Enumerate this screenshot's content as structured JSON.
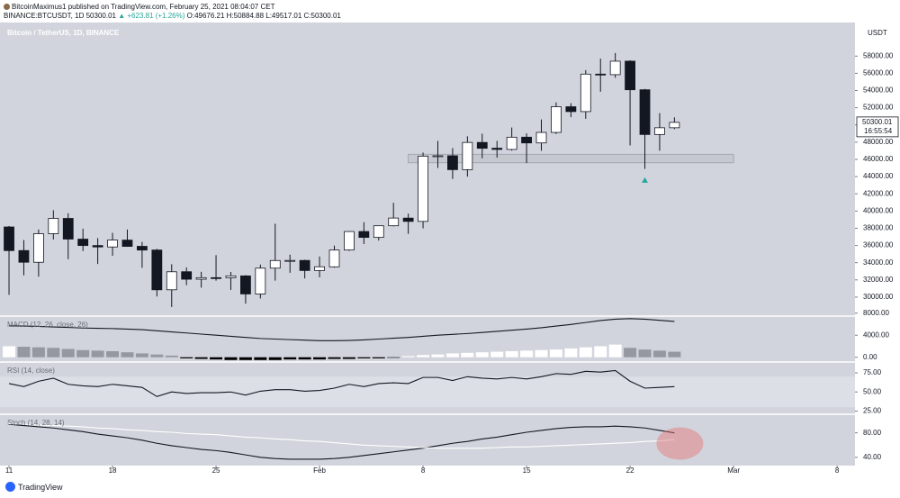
{
  "header": {
    "author_line": "BitcoinMaximus1 published on TradingView.com, February 25, 2021 08:04:07 CET",
    "symbol": "BINANCE:BTCUSDT, 1D",
    "last": "50300.01",
    "change": "▲ +623.81 (+1.26%)",
    "ohlc": "O:49676.21 H:50884.88 L:49517.01 C:50300.01"
  },
  "footer": {
    "brand": "TradingView"
  },
  "chart_data": {
    "type": "candlestick",
    "title": "Bitcoin / TetherUS, 1D, BINANCE",
    "y_unit": "USDT",
    "up_color": "#ffffff",
    "down_color": "#131722",
    "background": "#d1d4dc",
    "x": [
      "2021-01-11",
      "2021-01-12",
      "2021-01-13",
      "2021-01-14",
      "2021-01-15",
      "2021-01-16",
      "2021-01-17",
      "2021-01-18",
      "2021-01-19",
      "2021-01-20",
      "2021-01-21",
      "2021-01-22",
      "2021-01-23",
      "2021-01-24",
      "2021-01-25",
      "2021-01-26",
      "2021-01-27",
      "2021-01-28",
      "2021-01-29",
      "2021-01-30",
      "2021-01-31",
      "2021-02-01",
      "2021-02-02",
      "2021-02-03",
      "2021-02-04",
      "2021-02-05",
      "2021-02-06",
      "2021-02-07",
      "2021-02-08",
      "2021-02-09",
      "2021-02-10",
      "2021-02-11",
      "2021-02-12",
      "2021-02-13",
      "2021-02-14",
      "2021-02-15",
      "2021-02-16",
      "2021-02-17",
      "2021-02-18",
      "2021-02-19",
      "2021-02-20",
      "2021-02-21",
      "2021-02-22",
      "2021-02-23",
      "2021-02-24",
      "2021-02-25"
    ],
    "open": [
      38150,
      35410,
      34049,
      37371,
      39145,
      36737,
      35994,
      35824,
      36622,
      35901,
      35468,
      30852,
      32950,
      32078,
      32259,
      32254,
      32464,
      30362,
      33368,
      34246,
      34262,
      33092,
      33517,
      35472,
      37620,
      36936,
      38289,
      39181,
      38795,
      46374,
      46420,
      44807,
      47968,
      47298,
      47156,
      48580,
      47911,
      49133,
      52117,
      51552,
      55906,
      55841,
      57412,
      54087,
      48891,
      49676.21
    ],
    "high": [
      38264,
      36628,
      37850,
      40100,
      39747,
      37950,
      36852,
      37469,
      37850,
      36415,
      35600,
      33826,
      33456,
      32944,
      34875,
      32921,
      32557,
      33783,
      38531,
      34933,
      34342,
      34717,
      35984,
      37662,
      38708,
      38310,
      40955,
      39700,
      46794,
      48142,
      47310,
      48678,
      48985,
      48150,
      49707,
      49010,
      50641,
      52618,
      52530,
      56368,
      57700,
      58352,
      57508,
      54183,
      51374,
      50884.88
    ],
    "low": [
      30261,
      32531,
      32380,
      36701,
      34408,
      35357,
      33850,
      34800,
      35844,
      33400,
      30071,
      28850,
      31390,
      31106,
      31910,
      30837,
      29241,
      29842,
      31915,
      32825,
      32171,
      32296,
      33418,
      35362,
      36161,
      36570,
      38215,
      37351,
      37988,
      45000,
      43727,
      43994,
      46125,
      46202,
      47014,
      45570,
      47002,
      48947,
      50901,
      50710,
      53863,
      55477,
      47622,
      44892,
      47003,
      49517.01
    ],
    "close": [
      35404,
      34051,
      37371,
      39144,
      36742,
      35994,
      35828,
      36631,
      35891,
      35468,
      30850,
      32945,
      32078,
      32259,
      32254,
      32467,
      30366,
      33364,
      34252,
      34262,
      33092,
      33526,
      35466,
      37618,
      36936,
      38290,
      39186,
      38795,
      46374,
      46420,
      44807,
      47969,
      47287,
      47153,
      48577,
      47911,
      49133,
      52119,
      51552,
      55906,
      55841,
      57408,
      54087,
      48891,
      49676,
      50300.01
    ],
    "xlim": [
      "2021-01-10",
      "2021-03-10"
    ],
    "xticks": [
      {
        "value": "2021-01-11",
        "label": "11"
      },
      {
        "value": "2021-01-18",
        "label": "18"
      },
      {
        "value": "2021-01-25",
        "label": "25"
      },
      {
        "value": "2021-02-01",
        "label": "Feb"
      },
      {
        "value": "2021-02-08",
        "label": "8"
      },
      {
        "value": "2021-02-15",
        "label": "15"
      },
      {
        "value": "2021-02-22",
        "label": "22"
      },
      {
        "value": "2021-03-01",
        "label": "Mar"
      },
      {
        "value": "2021-03-08",
        "label": "8"
      }
    ],
    "ylim": [
      27900,
      61900
    ],
    "yticks": [
      {
        "value": 30000,
        "label": "30000.00"
      },
      {
        "value": 32000,
        "label": "32000.00"
      },
      {
        "value": 34000,
        "label": "34000.00"
      },
      {
        "value": 36000,
        "label": "36000.00"
      },
      {
        "value": 38000,
        "label": "38000.00"
      },
      {
        "value": 40000,
        "label": "40000.00"
      },
      {
        "value": 42000,
        "label": "42000.00"
      },
      {
        "value": 44000,
        "label": "44000.00"
      },
      {
        "value": 46000,
        "label": "46000.00"
      },
      {
        "value": 48000,
        "label": "48000.00"
      },
      {
        "value": 50000,
        "label": "50000.00"
      },
      {
        "value": 52000,
        "label": "52000.00"
      },
      {
        "value": 54000,
        "label": "54000.00"
      },
      {
        "value": 56000,
        "label": "56000.00"
      },
      {
        "value": 58000,
        "label": "58000.00"
      }
    ],
    "last_price": {
      "value": 50300.01,
      "label": "50300.01"
    },
    "countdown": "16:55:54",
    "zone": {
      "from": 45600,
      "to": 46600,
      "start": "2021-02-07",
      "end": "2021-03-01"
    },
    "marker": {
      "x": "2021-02-23",
      "y": 43600,
      "color": "#26a69a"
    },
    "panels": [
      {
        "title": "MACD (12, 26, close, 26)",
        "ylim": [
          -700,
          7300
        ],
        "yticks": [
          {
            "value": 8000,
            "label": "8000.00"
          },
          {
            "value": 4000,
            "label": "4000.00"
          },
          {
            "value": 0,
            "label": "0.00"
          }
        ],
        "series": [
          {
            "type": "histogram",
            "colors": {
              "rising": "#ffffff",
              "falling": "#9598a1",
              "negative": "#000000"
            },
            "values": [
              2000,
              1900,
              1800,
              1700,
              1500,
              1300,
              1200,
              1100,
              900,
              700,
              500,
              300,
              -200,
              -300,
              -400,
              -500,
              -500,
              -500,
              -500,
              -400,
              -400,
              -400,
              -300,
              -300,
              -200,
              -200,
              -100,
              200,
              400,
              500,
              700,
              800,
              900,
              1000,
              1100,
              1200,
              1300,
              1400,
              1600,
              1800,
              2000,
              2300,
              1700,
              1400,
              1200,
              1000
            ]
          },
          {
            "type": "line",
            "color": "#131722",
            "values": [
              5700,
              5650,
              5600,
              5500,
              5400,
              5300,
              5250,
              5200,
              5100,
              5000,
              4800,
              4600,
              4400,
              4200,
              4000,
              3800,
              3600,
              3400,
              3300,
              3200,
              3100,
              3000,
              3000,
              3050,
              3150,
              3300,
              3450,
              3600,
              3800,
              4000,
              4150,
              4300,
              4500,
              4700,
              4900,
              5100,
              5350,
              5650,
              5950,
              6300,
              6650,
              6900,
              7000,
              6900,
              6700,
              6500
            ]
          }
        ]
      },
      {
        "title": "RSI (14, close)",
        "ylim": [
          22,
          88
        ],
        "band": [
          30,
          70
        ],
        "yticks": [
          {
            "value": 25,
            "label": "25.00"
          },
          {
            "value": 50,
            "label": "50.00"
          },
          {
            "value": 75,
            "label": "75.00"
          }
        ],
        "series": [
          {
            "type": "line",
            "color": "#131722",
            "values": [
              61,
              57,
              64,
              68,
              60,
              58,
              57,
              60,
              58,
              56,
              44,
              50,
              48,
              49,
              49,
              50,
              46,
              51,
              53,
              53,
              51,
              52,
              55,
              60,
              57,
              61,
              62,
              61,
              69,
              69,
              65,
              70,
              68,
              67,
              69,
              67,
              70,
              74,
              73,
              77,
              76,
              78,
              64,
              55,
              56,
              57
            ]
          }
        ]
      },
      {
        "title": "Stoch (14, 28, 14)",
        "ylim": [
          28,
          109
        ],
        "yticks": [
          {
            "value": 40,
            "label": "40.00"
          },
          {
            "value": 80,
            "label": "80.00"
          }
        ],
        "highlight": {
          "x": "2021-02-25",
          "y": 70,
          "color": "#e57373"
        },
        "series": [
          {
            "type": "line",
            "color": "#131722",
            "values": [
              94,
              92,
              90,
              88,
              85,
              82,
              78,
              75,
              72,
              68,
              63,
              59,
              56,
              53,
              51,
              48,
              44,
              40,
              38,
              37,
              37,
              37,
              38,
              40,
              43,
              46,
              49,
              52,
              55,
              59,
              63,
              66,
              70,
              73,
              77,
              81,
              84,
              87,
              89,
              90,
              90,
              91,
              90,
              88,
              84,
              80
            ]
          },
          {
            "type": "line",
            "color": "#ffffff",
            "values": [
              95,
              94,
              93,
              92,
              91,
              90,
              88,
              87,
              85,
              84,
              82,
              81,
              79,
              78,
              77,
              75,
              73,
              72,
              70,
              69,
              67,
              66,
              64,
              62,
              60,
              59,
              58,
              57,
              56,
              55,
              55,
              55,
              55,
              56,
              57,
              57,
              58,
              59,
              60,
              61,
              62,
              63,
              64,
              66,
              67,
              69
            ]
          }
        ]
      }
    ]
  }
}
